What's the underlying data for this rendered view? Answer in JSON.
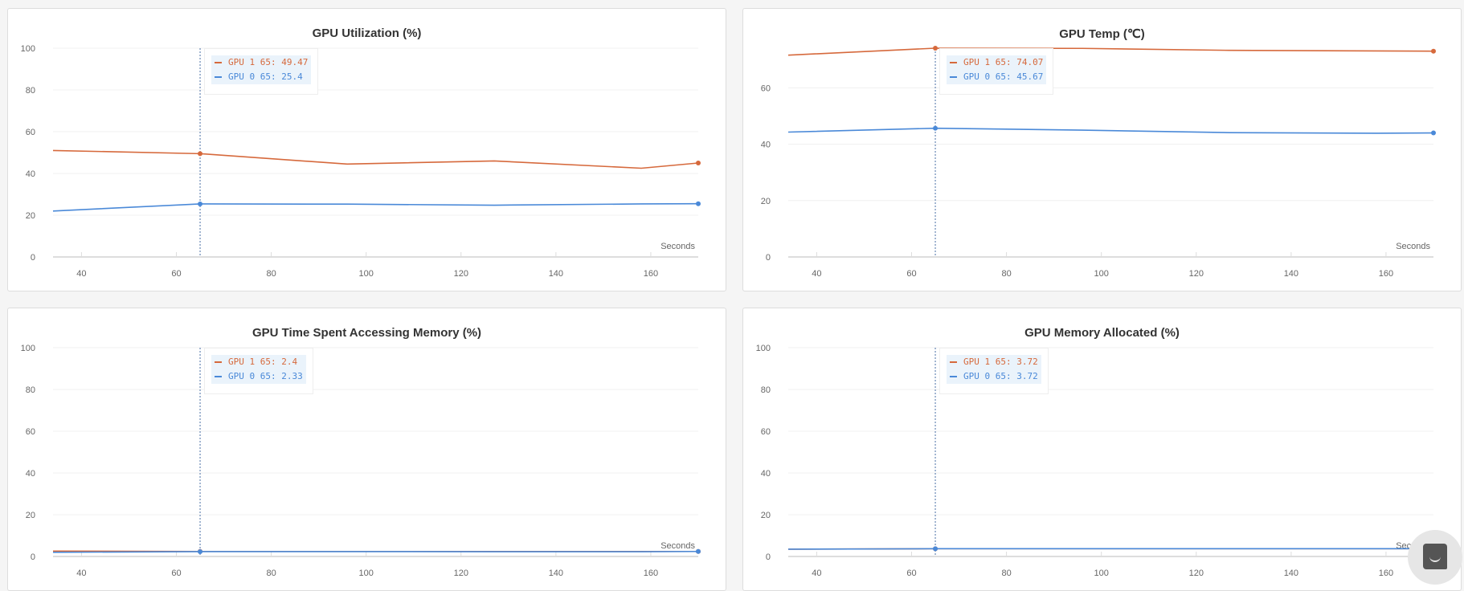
{
  "colors": {
    "gpu1": "#d6693c",
    "gpu0": "#4a89d8"
  },
  "chart_data": [
    {
      "type": "line",
      "title": "GPU Utilization (%)",
      "xlabel": "Seconds",
      "xlim": [
        34,
        170
      ],
      "ylim": [
        0,
        100
      ],
      "xticks": [
        40,
        60,
        80,
        100,
        120,
        140,
        160
      ],
      "yticks": [
        0,
        20,
        40,
        60,
        80,
        100
      ],
      "grid": true,
      "hover_x": 65,
      "series": [
        {
          "name": "GPU 1",
          "x": [
            34,
            65,
            96,
            127,
            158,
            170
          ],
          "y": [
            51,
            49.47,
            44.5,
            46,
            42.5,
            45
          ],
          "tooltip": "GPU 1 65: 49.47"
        },
        {
          "name": "GPU 0",
          "x": [
            34,
            65,
            96,
            127,
            158,
            170
          ],
          "y": [
            22,
            25.4,
            25.3,
            24.8,
            25.4,
            25.5
          ],
          "tooltip": "GPU 0 65: 25.4"
        }
      ]
    },
    {
      "type": "line",
      "title": "GPU Temp (℃)",
      "xlabel": "Seconds",
      "xlim": [
        34,
        170
      ],
      "ylim": [
        0,
        74.07
      ],
      "xticks": [
        40,
        60,
        80,
        100,
        120,
        140,
        160
      ],
      "yticks": [
        0,
        20,
        40,
        60
      ],
      "grid": true,
      "hover_x": 65,
      "series": [
        {
          "name": "GPU 1",
          "x": [
            34,
            65,
            96,
            127,
            158,
            170
          ],
          "y": [
            71.6,
            74.07,
            74,
            73.3,
            73.1,
            73
          ],
          "tooltip": "GPU 1 65: 74.07"
        },
        {
          "name": "GPU 0",
          "x": [
            34,
            65,
            96,
            127,
            158,
            170
          ],
          "y": [
            44.3,
            45.67,
            45,
            44.1,
            43.9,
            44
          ],
          "tooltip": "GPU 0 65: 45.67"
        }
      ]
    },
    {
      "type": "line",
      "title": "GPU Time Spent Accessing Memory (%)",
      "xlabel": "Seconds",
      "xlim": [
        34,
        170
      ],
      "ylim": [
        0,
        100
      ],
      "xticks": [
        40,
        60,
        80,
        100,
        120,
        140,
        160
      ],
      "yticks": [
        0,
        20,
        40,
        60,
        80,
        100
      ],
      "grid": true,
      "hover_x": 65,
      "series": [
        {
          "name": "GPU 1",
          "x": [
            34,
            65,
            96,
            127,
            158,
            170
          ],
          "y": [
            2.6,
            2.4,
            2.4,
            2.4,
            2.4,
            2.4
          ],
          "tooltip": "GPU 1 65: 2.4"
        },
        {
          "name": "GPU 0",
          "x": [
            34,
            65,
            96,
            127,
            158,
            170
          ],
          "y": [
            2.0,
            2.33,
            2.33,
            2.3,
            2.3,
            2.4
          ],
          "tooltip": "GPU 0 65: 2.33"
        }
      ]
    },
    {
      "type": "line",
      "title": "GPU Memory Allocated (%)",
      "xlabel": "Seconds",
      "xlim": [
        34,
        170
      ],
      "ylim": [
        0,
        100
      ],
      "xticks": [
        40,
        60,
        80,
        100,
        120,
        140,
        160
      ],
      "yticks": [
        0,
        20,
        40,
        60,
        80,
        100
      ],
      "grid": true,
      "hover_x": 65,
      "series": [
        {
          "name": "GPU 1",
          "x": [
            34,
            65,
            96,
            127,
            158,
            170
          ],
          "y": [
            3.5,
            3.72,
            3.72,
            3.72,
            3.72,
            3.72
          ],
          "tooltip": "GPU 1 65: 3.72"
        },
        {
          "name": "GPU 0",
          "x": [
            34,
            65,
            96,
            127,
            158,
            170
          ],
          "y": [
            3.5,
            3.72,
            3.72,
            3.72,
            3.72,
            3.72
          ],
          "tooltip": "GPU 0 65: 3.72"
        }
      ]
    }
  ],
  "chat_widget": {
    "icon": "chat-bubble-icon"
  }
}
